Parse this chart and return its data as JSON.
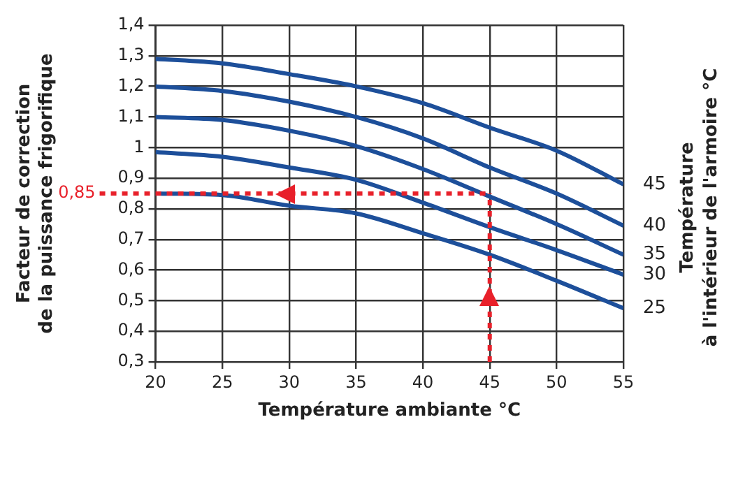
{
  "chart_data": {
    "type": "line",
    "xlabel": "Température ambiante °C",
    "ylabel": "Facteur de correction\nde la puissance frigorifique",
    "legend_title": "Température\nà l'intérieur de l'armoire °C",
    "x": [
      20,
      25,
      30,
      35,
      40,
      45,
      50,
      55
    ],
    "series": [
      {
        "name": "45",
        "color": "#1d4f9a",
        "values": [
          1.29,
          1.275,
          1.24,
          1.2,
          1.145,
          1.065,
          0.99,
          0.88
        ]
      },
      {
        "name": "40",
        "color": "#1d4f9a",
        "values": [
          1.2,
          1.185,
          1.15,
          1.1,
          1.03,
          0.935,
          0.85,
          0.745
        ]
      },
      {
        "name": "35",
        "color": "#1d4f9a",
        "values": [
          1.1,
          1.09,
          1.055,
          1.005,
          0.93,
          0.84,
          0.75,
          0.65
        ]
      },
      {
        "name": "30",
        "color": "#1d4f9a",
        "values": [
          0.985,
          0.97,
          0.935,
          0.895,
          0.82,
          0.74,
          0.665,
          0.585
        ]
      },
      {
        "name": "25",
        "color": "#1d4f9a",
        "values": [
          0.85,
          0.845,
          0.81,
          0.785,
          0.72,
          0.65,
          0.565,
          0.475
        ]
      }
    ],
    "xlim": [
      20,
      55
    ],
    "xticks": [
      20,
      25,
      30,
      35,
      40,
      45,
      50,
      55
    ],
    "ylim": [
      0.3,
      1.4
    ],
    "yticks": [
      {
        "value": 0.3,
        "label": "0,3"
      },
      {
        "value": 0.4,
        "label": "0,4"
      },
      {
        "value": 0.5,
        "label": "0,5"
      },
      {
        "value": 0.6,
        "label": "0,6"
      },
      {
        "value": 0.7,
        "label": "0,7"
      },
      {
        "value": 0.8,
        "label": "0,8"
      },
      {
        "value": 0.9,
        "label": "0,9"
      },
      1,
      {
        "value": 1.1,
        "label": "1,1"
      },
      {
        "value": 1.2,
        "label": "1,2"
      },
      {
        "value": 1.3,
        "label": "1,3"
      },
      {
        "value": 1.4,
        "label": "1,4"
      }
    ],
    "grid": true,
    "legend": false,
    "marker": "none",
    "line_style": "solid",
    "ref_lines": [
      {
        "axis": "y",
        "value": 0.85,
        "label": "0,85",
        "color": "#e8202a",
        "line_style": "dotted"
      },
      {
        "axis": "x",
        "value": 45,
        "color": "#e8202a",
        "line_style": "dotted"
      }
    ]
  }
}
